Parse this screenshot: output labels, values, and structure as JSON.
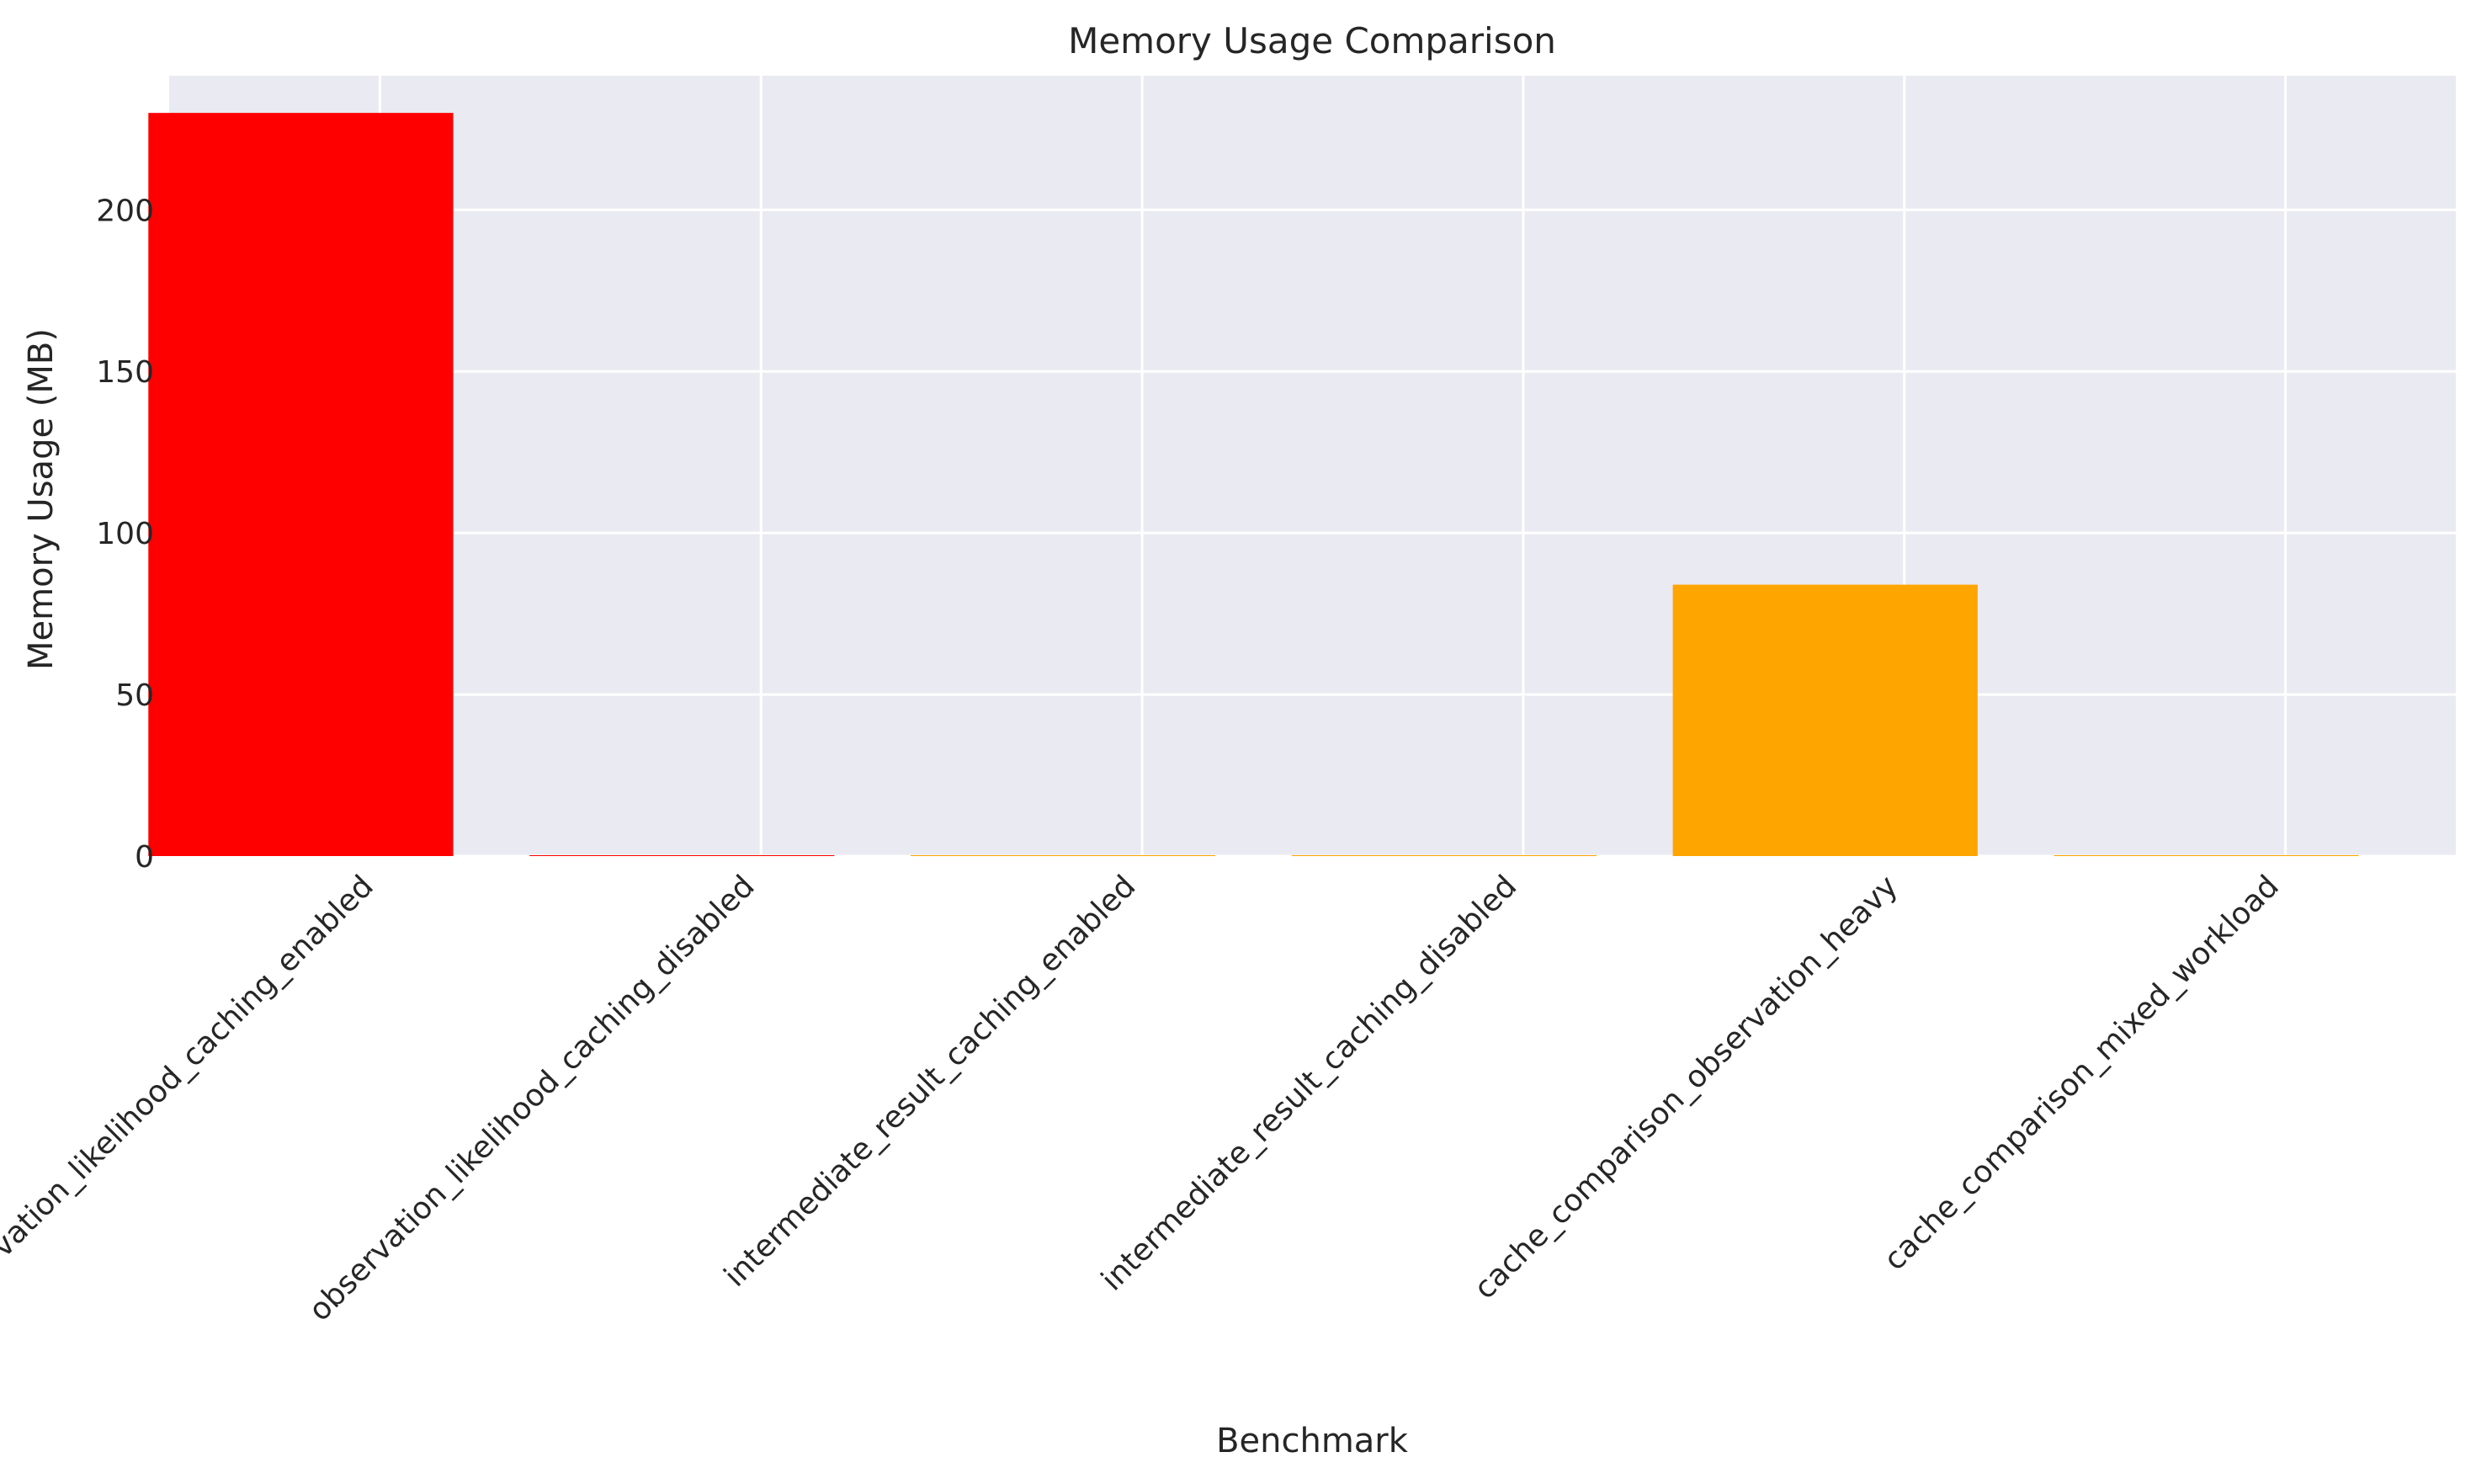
{
  "chart_data": {
    "type": "bar",
    "title": "Memory Usage Comparison",
    "xlabel": "Benchmark",
    "ylabel": "Memory Usage (MB)",
    "categories": [
      "observation_likelihood_caching_enabled",
      "observation_likelihood_caching_disabled",
      "intermediate_result_caching_enabled",
      "intermediate_result_caching_disabled",
      "cache_comparison_observation_heavy",
      "cache_comparison_mixed_workload"
    ],
    "values": [
      230,
      0,
      0,
      0,
      84,
      0
    ],
    "bar_colors": [
      "#ff0000",
      "#ff0000",
      "#ffa500",
      "#ffa500",
      "#ffa500",
      "#ffa500"
    ],
    "ylim": [
      0,
      241.5
    ],
    "yticks": [
      0,
      50,
      100,
      150,
      200
    ],
    "grid": true,
    "style": {
      "background": "#eaeaf2",
      "grid_color": "#ffffff"
    }
  }
}
